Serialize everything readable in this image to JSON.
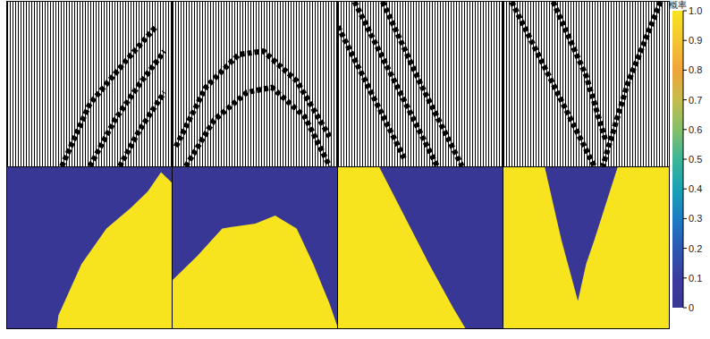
{
  "chart_data": {
    "type": "heatmap",
    "xlim": [
      0,
      1
    ],
    "ylim": [
      0,
      1
    ],
    "tick_labels": false,
    "colors": [
      "#383795",
      "#f7e41e"
    ],
    "panels": [
      {
        "events": [
          {
            "x": [
              0.33,
              0.5,
              0.7,
              0.9
            ],
            "depth": [
              1.0,
              0.62,
              0.38,
              0.15
            ]
          },
          {
            "x": [
              0.5,
              0.65,
              0.8,
              0.95
            ],
            "depth": [
              1.0,
              0.72,
              0.5,
              0.3
            ]
          },
          {
            "x": [
              0.68,
              0.8,
              0.95
            ],
            "depth": [
              1.0,
              0.78,
              0.55
            ]
          }
        ],
        "boundary": {
          "x": [
            0,
            0.3,
            0.31,
            0.45,
            0.6,
            0.75,
            0.85,
            0.93,
            1
          ],
          "depth": [
            1,
            1,
            0.92,
            0.6,
            0.38,
            0.25,
            0.15,
            0.03,
            0.1
          ]
        }
      },
      {
        "events": [
          {
            "x": [
              0.02,
              0.2,
              0.4,
              0.55,
              0.75,
              0.95
            ],
            "depth": [
              0.88,
              0.52,
              0.32,
              0.3,
              0.48,
              0.82
            ]
          },
          {
            "x": [
              0.08,
              0.25,
              0.45,
              0.6,
              0.8,
              0.95
            ],
            "depth": [
              1.0,
              0.72,
              0.55,
              0.52,
              0.7,
              1.0
            ]
          }
        ],
        "boundary": {
          "x": [
            0,
            0.02,
            0.15,
            0.3,
            0.5,
            0.62,
            0.75,
            0.85,
            0.95,
            1
          ],
          "depth": [
            0.7,
            0.68,
            0.55,
            0.38,
            0.35,
            0.3,
            0.38,
            0.6,
            0.85,
            1
          ]
        }
      },
      {
        "events": [
          {
            "x": [
              0.27,
              0.5,
              0.75
            ],
            "depth": [
              0,
              0.5,
              1
            ]
          },
          {
            "x": [
              0.1,
              0.35,
              0.6
            ],
            "depth": [
              0,
              0.5,
              1
            ]
          },
          {
            "x": [
              0.0,
              0.2,
              0.4
            ],
            "depth": [
              0.15,
              0.55,
              0.95
            ]
          }
        ],
        "boundary": {
          "x": [
            0,
            0.25,
            0.4,
            0.55,
            0.7,
            0.77,
            1
          ],
          "depth": [
            0,
            0,
            0.3,
            0.6,
            0.88,
            1,
            1
          ]
        }
      },
      {
        "events": [
          {
            "x": [
              0.05,
              0.3,
              0.55
            ],
            "depth": [
              0,
              0.5,
              1
            ]
          },
          {
            "x": [
              0.95,
              0.75,
              0.6
            ],
            "depth": [
              0,
              0.5,
              1
            ]
          },
          {
            "x": [
              0.3,
              0.5,
              0.62
            ],
            "depth": [
              0,
              0.45,
              0.85
            ]
          }
        ],
        "boundary": {
          "x": [
            0,
            0.25,
            0.35,
            0.45,
            0.5,
            0.55,
            0.69,
            1
          ],
          "depth": [
            0,
            0,
            0.45,
            0.83,
            0.6,
            0.45,
            0,
            0
          ]
        }
      }
    ],
    "colorbar": {
      "label": "概率",
      "range": [
        0,
        1
      ],
      "ticks": [
        0,
        0.1,
        0.2,
        0.3,
        0.4,
        0.5,
        0.6,
        0.7,
        0.8,
        0.9,
        {
          "value": 1,
          "label": "1.0"
        }
      ]
    }
  }
}
